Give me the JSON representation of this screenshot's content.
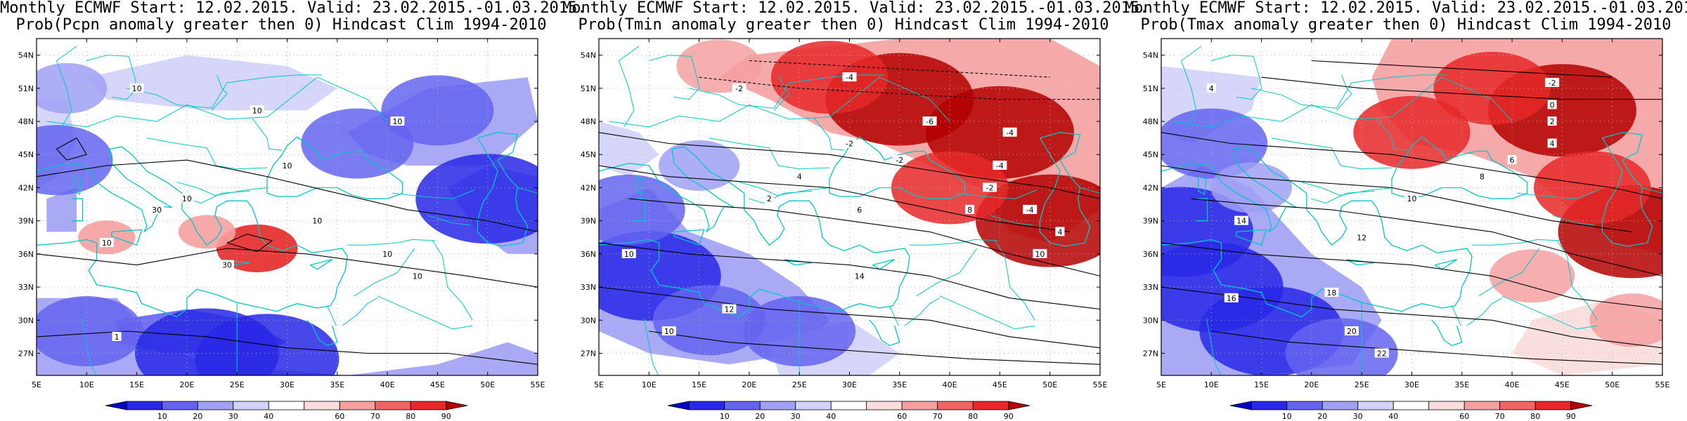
{
  "panels": [
    {
      "title_line1": "Monthly ECMWF Start: 12.02.2015. Valid: 23.02.2015.-01.03.2015.",
      "title_line2": "Prob(Pcpn anomaly greater then 0) Hindcast Clim 1994-2010",
      "contour_labels": [
        "10",
        "10",
        "10",
        "10",
        "10",
        "10",
        "10",
        "10",
        "30",
        "30",
        "10",
        "1"
      ],
      "warm_patches": [],
      "cool_patches": [
        {
          "lon": 7,
          "lat": 44.5,
          "level": 2
        },
        {
          "lon": 10,
          "lat": 29,
          "level": 2
        },
        {
          "lon": 22,
          "lat": 27,
          "level": 3
        },
        {
          "lon": 28,
          "lat": 26.5,
          "level": 3
        },
        {
          "lon": 45,
          "lat": 49,
          "level": 2
        },
        {
          "lon": 50,
          "lat": 41,
          "level": 3
        },
        {
          "lon": 37,
          "lat": 46,
          "level": 2
        },
        {
          "lon": 8,
          "lat": 51,
          "level": 1
        }
      ],
      "pink_patches": [
        {
          "lon": 27,
          "lat": 36.5,
          "level": 2
        },
        {
          "lon": 22,
          "lat": 38,
          "level": 1
        },
        {
          "lon": 12,
          "lat": 37.5,
          "level": 1
        }
      ]
    },
    {
      "title_line1": "Monthly ECMWF Start: 12.02.2015. Valid: 23.02.2015.-01.03.2015.",
      "title_line2": "Prob(Tmin anomaly greater then 0) Hindcast Clim 1994-2010",
      "contour_labels": [
        "-2",
        "-4",
        "-6",
        "-4",
        "-2",
        "-4",
        "-2",
        "2",
        "4",
        "6",
        "8",
        "10",
        "12",
        "14",
        "10",
        "-2",
        "-4",
        "4",
        "10"
      ],
      "warm_patches": [
        {
          "lon": 35,
          "lat": 50,
          "level": 3
        },
        {
          "lon": 45,
          "lat": 47,
          "level": 3
        },
        {
          "lon": 50,
          "lat": 39,
          "level": 3
        },
        {
          "lon": 28,
          "lat": 52,
          "level": 2
        },
        {
          "lon": 40,
          "lat": 42,
          "level": 2
        },
        {
          "lon": 17,
          "lat": 53,
          "level": 1
        }
      ],
      "cool_patches": [
        {
          "lon": 10,
          "lat": 34,
          "level": 3
        },
        {
          "lon": 16,
          "lat": 30,
          "level": 2
        },
        {
          "lon": 8,
          "lat": 40,
          "level": 2
        },
        {
          "lon": 25,
          "lat": 29,
          "level": 2
        },
        {
          "lon": 15,
          "lat": 44,
          "level": 1
        }
      ],
      "pink_patches": []
    },
    {
      "title_line1": "Monthly ECMWF Start: 12.02.2015. Valid: 23.02.2015.-01.03.2015.",
      "title_line2": "Prob(Tmax anomaly greater then 0) Hindcast Clim 1994-2010",
      "contour_labels": [
        "4",
        "-2",
        "0",
        "2",
        "4",
        "6",
        "8",
        "10",
        "12",
        "14",
        "16",
        "18",
        "20",
        "22"
      ],
      "warm_patches": [
        {
          "lon": 45,
          "lat": 49,
          "level": 3
        },
        {
          "lon": 52,
          "lat": 38,
          "level": 3
        },
        {
          "lon": 38,
          "lat": 51,
          "level": 2
        },
        {
          "lon": 30,
          "lat": 47,
          "level": 2
        },
        {
          "lon": 48,
          "lat": 42,
          "level": 2
        },
        {
          "lon": 42,
          "lat": 34,
          "level": 1
        },
        {
          "lon": 52,
          "lat": 30,
          "level": 1
        }
      ],
      "cool_patches": [
        {
          "lon": 10,
          "lat": 33,
          "level": 3
        },
        {
          "lon": 16,
          "lat": 29,
          "level": 3
        },
        {
          "lon": 7,
          "lat": 38,
          "level": 3
        },
        {
          "lon": 10,
          "lat": 46,
          "level": 2
        },
        {
          "lon": 23,
          "lat": 27,
          "level": 2
        },
        {
          "lon": 14,
          "lat": 42,
          "level": 1
        }
      ],
      "pink_patches": []
    }
  ],
  "axes": {
    "lon_ticks": [
      "5E",
      "10E",
      "15E",
      "20E",
      "25E",
      "30E",
      "35E",
      "40E",
      "45E",
      "50E",
      "55E"
    ],
    "lat_ticks": [
      "54N",
      "51N",
      "48N",
      "45N",
      "42N",
      "39N",
      "36N",
      "33N",
      "30N",
      "27N"
    ],
    "lon_range": [
      5,
      55
    ],
    "lat_range": [
      25,
      55.5
    ]
  },
  "colorbar": {
    "labels": [
      "10",
      "20",
      "30",
      "40",
      "60",
      "70",
      "80",
      "90"
    ],
    "colors": [
      "#0000c8",
      "#2828e6",
      "#6464f0",
      "#a0a0f5",
      "#d2d2fa",
      "#ffffff",
      "#fadcdc",
      "#f5a0a0",
      "#f06464",
      "#e62828",
      "#b40000"
    ]
  },
  "colors": {
    "coast": "#00c8c8",
    "contour": "#000000"
  }
}
